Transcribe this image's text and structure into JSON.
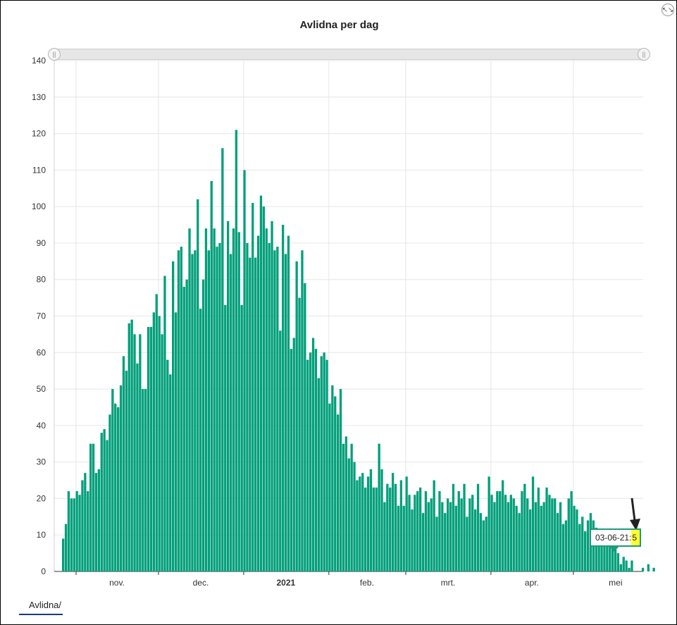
{
  "title": "Avlidna per dag",
  "tab_label": "Avlidna/",
  "tooltip": {
    "date": "03-06-21",
    "separator": ":",
    "value": "5"
  },
  "colors": {
    "bar": "#009f7a",
    "tooltip_border": "#1f9a78",
    "highlight": "#ffff33",
    "grid": "#e6e6e6"
  },
  "icons": {
    "collapse": "collapse-icon",
    "annotation": "arrow-annotation-icon"
  },
  "chart_data": {
    "type": "bar",
    "title": "Avlidna per dag",
    "xlabel": "",
    "ylabel": "",
    "ylim": [
      0,
      140
    ],
    "y_ticks": [
      0,
      10,
      20,
      30,
      40,
      50,
      60,
      70,
      80,
      90,
      100,
      110,
      120,
      130,
      140
    ],
    "x_ticks": [
      "nov.",
      "dec.",
      "2021",
      "feb.",
      "mrt.",
      "apr.",
      "mei"
    ],
    "x_ticks_bold": [
      "2021"
    ],
    "grid": true,
    "start_date": "2020-10-27",
    "values": [
      9,
      13,
      22,
      20,
      20,
      22,
      21,
      25,
      27,
      22,
      35,
      35,
      27,
      28,
      38,
      39,
      36,
      43,
      50,
      46,
      45,
      51,
      59,
      55,
      68,
      69,
      65,
      57,
      65,
      50,
      50,
      67,
      67,
      71,
      76,
      70,
      65,
      81,
      58,
      54,
      85,
      71,
      88,
      89,
      78,
      80,
      94,
      87,
      88,
      102,
      72,
      80,
      94,
      88,
      107,
      94,
      89,
      90,
      116,
      73,
      96,
      87,
      94,
      121,
      93,
      73,
      110,
      90,
      86,
      101,
      86,
      92,
      103,
      100,
      94,
      90,
      96,
      88,
      89,
      66,
      95,
      87,
      92,
      61,
      64,
      85,
      75,
      88,
      79,
      58,
      60,
      64,
      61,
      53,
      59,
      60,
      58,
      46,
      51,
      48,
      43,
      50,
      35,
      37,
      31,
      35,
      30,
      25,
      26,
      27,
      23,
      26,
      28,
      23,
      23,
      35,
      28,
      19,
      24,
      23,
      27,
      24,
      18,
      25,
      18,
      26,
      21,
      17,
      21,
      22,
      23,
      16,
      22,
      19,
      20,
      25,
      15,
      22,
      19,
      16,
      20,
      19,
      24,
      18,
      22,
      20,
      24,
      15,
      20,
      21,
      17,
      24,
      16,
      14,
      15,
      26,
      21,
      19,
      22,
      22,
      25,
      21,
      19,
      21,
      20,
      18,
      16,
      22,
      24,
      20,
      17,
      26,
      19,
      23,
      18,
      19,
      23,
      21,
      20,
      20,
      16,
      19,
      13,
      14,
      20,
      22,
      18,
      17,
      13,
      15,
      11,
      14,
      16,
      14,
      12,
      11,
      9,
      11,
      10,
      8,
      7,
      6,
      5,
      2,
      4,
      3,
      1,
      3,
      0,
      0,
      0,
      1,
      0,
      2,
      0,
      1
    ],
    "highlight": {
      "date": "03-06-21",
      "value": 5
    }
  }
}
